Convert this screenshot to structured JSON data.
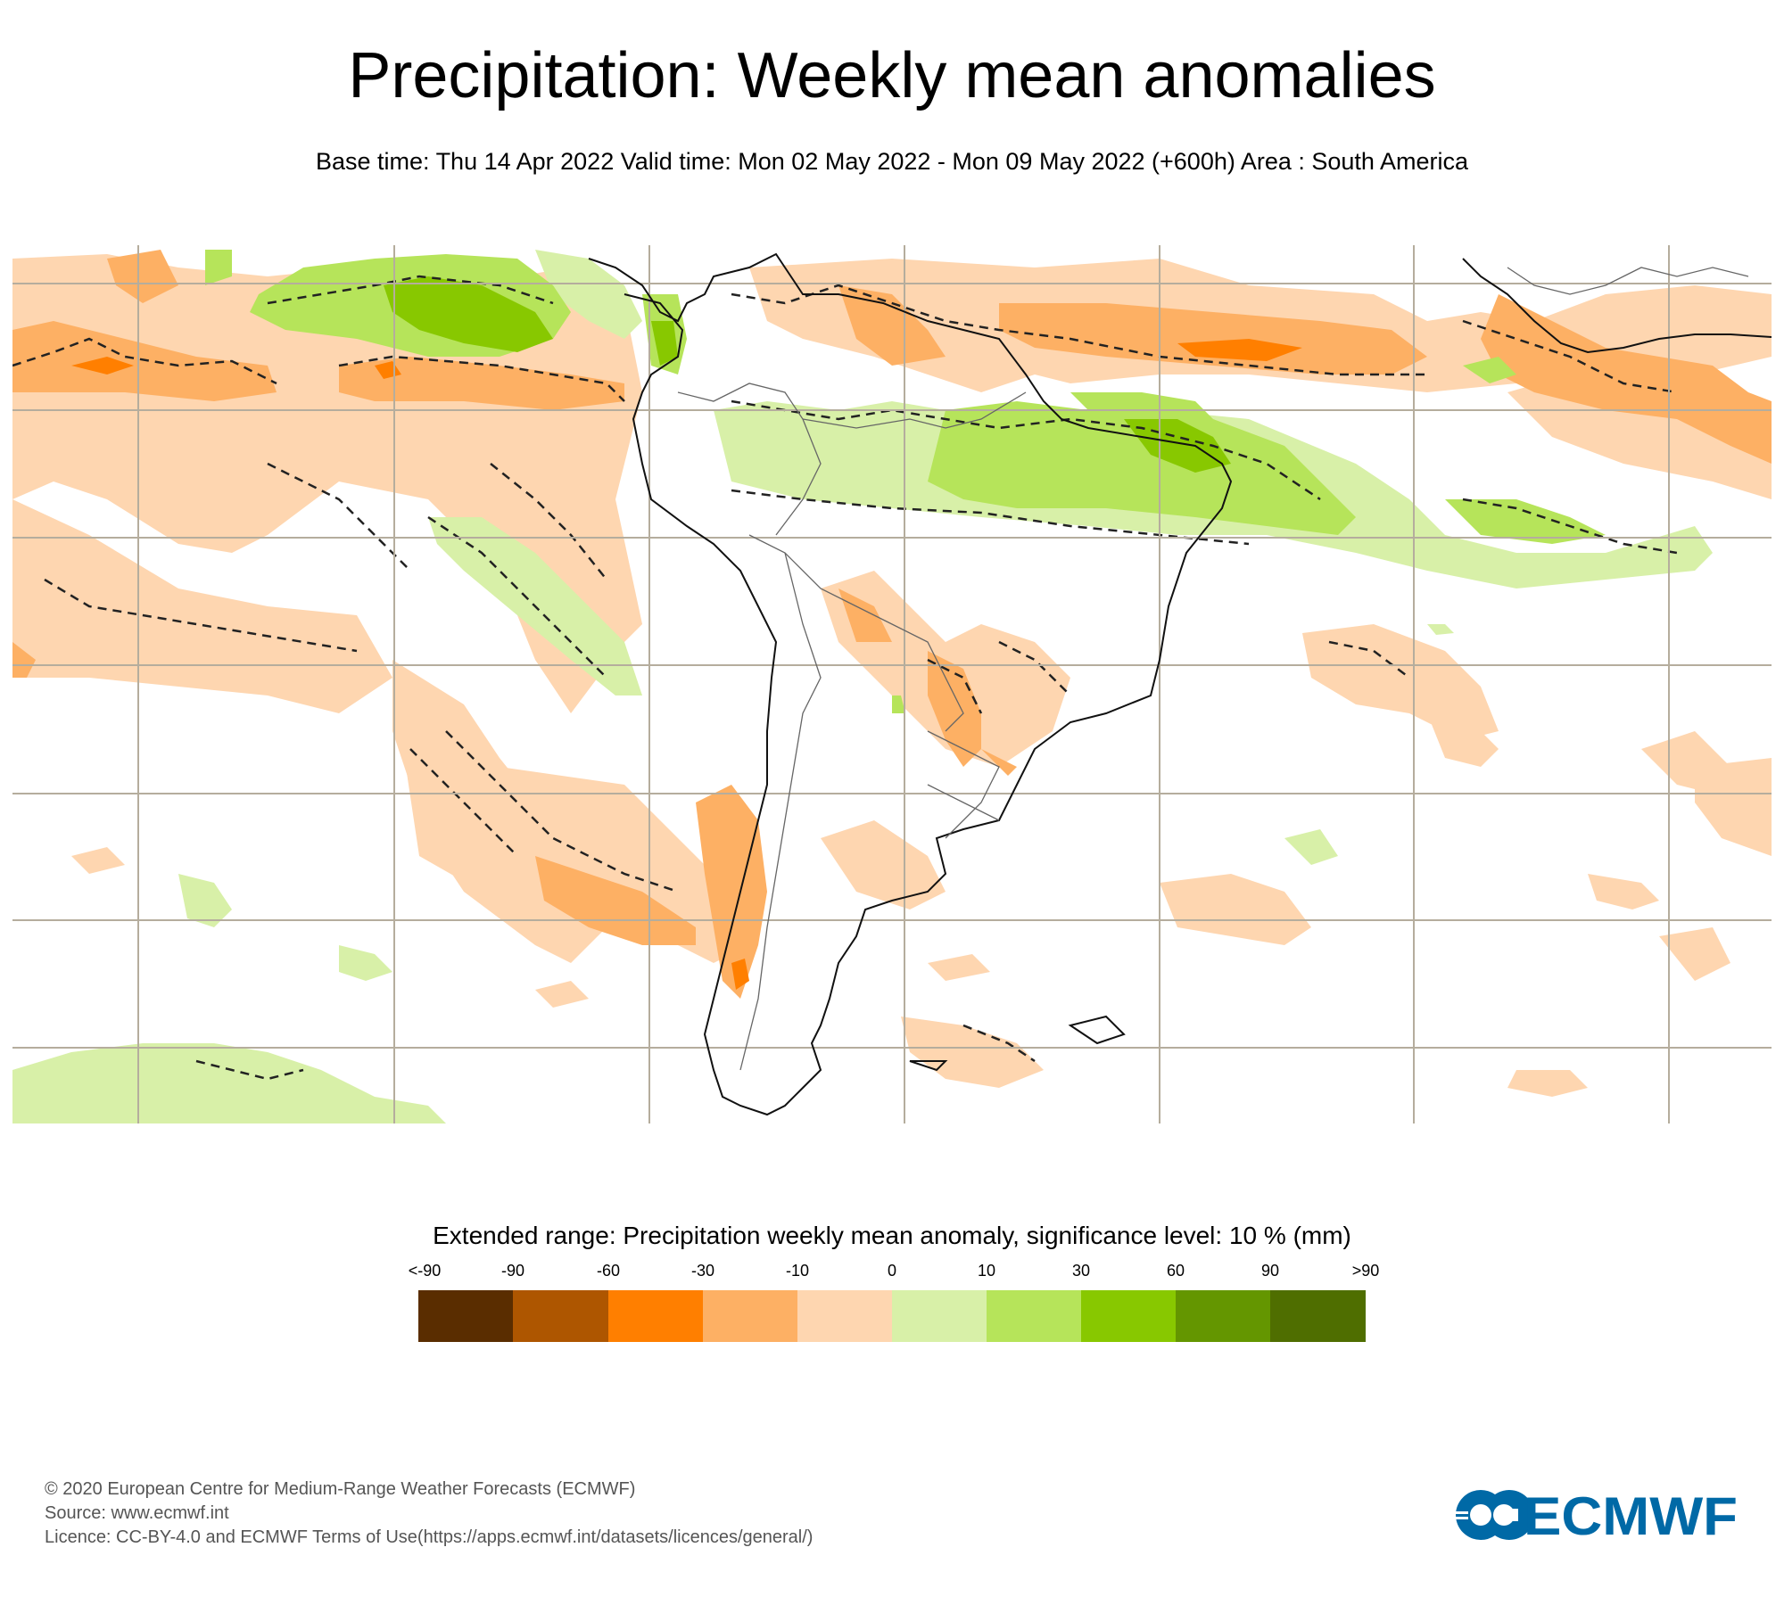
{
  "header": {
    "title": "Precipitation: Weekly mean anomalies",
    "subtitle": "Base time: Thu 14 Apr 2022 Valid time: Mon 02 May 2022 - Mon 09 May 2022 (+600h) Area : South America"
  },
  "map": {
    "area": "South America",
    "grid_color": "#b5ad9d",
    "coastline_color": "#000000",
    "border_color": "#555555",
    "significance_contour": "dashed"
  },
  "legend": {
    "title": "Extended range: Precipitation weekly mean anomaly, significance level: 10 % (mm)",
    "labels": [
      "<-90",
      "-90",
      "-60",
      "-30",
      "-10",
      "0",
      "10",
      "30",
      "60",
      "90",
      ">90"
    ],
    "colors": [
      "#5a2d00",
      "#ae5600",
      "#ff7f00",
      "#fdb064",
      "#fed6b0",
      "#d8f0a8",
      "#b6e45a",
      "#88c800",
      "#649600",
      "#4f6e00"
    ]
  },
  "footer": {
    "copyright": "© 2020 European Centre for Medium-Range Weather Forecasts (ECMWF)",
    "source": "Source: www.ecmwf.int",
    "licence": "Licence: CC-BY-4.0 and ECMWF Terms of Use(https://apps.ecmwf.int/datasets/licences/general/)"
  },
  "logo": {
    "text": "ECMWF",
    "color": "#0069a6"
  }
}
